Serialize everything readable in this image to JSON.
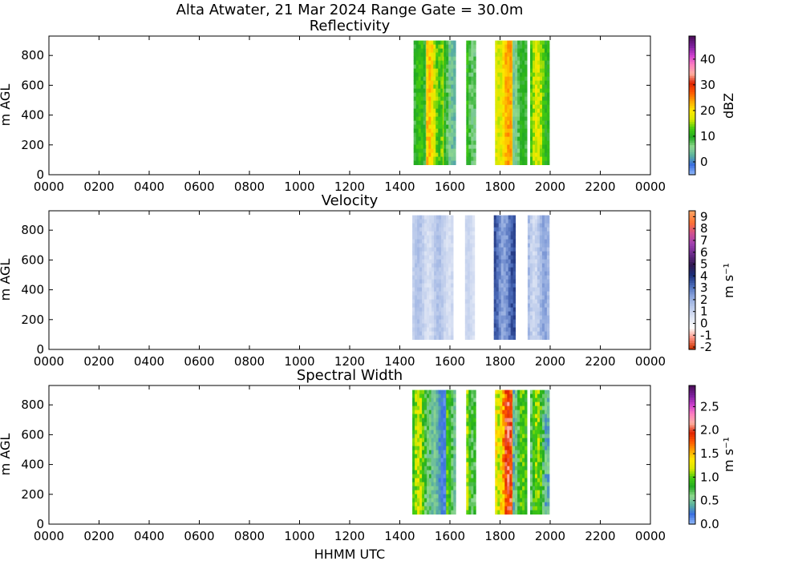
{
  "title": "Alta Atwater, 21 Mar 2024 Range Gate = 30.0m",
  "xlabel": "HHMM UTC",
  "chart_data": [
    {
      "type": "heatmap",
      "title": "Reflectivity",
      "ylabel": "m AGL",
      "xlim": [
        0,
        24
      ],
      "xticks": [
        "0000",
        "0200",
        "0400",
        "0600",
        "0800",
        "1000",
        "1200",
        "1400",
        "1600",
        "1800",
        "2000",
        "2200",
        "0000"
      ],
      "ylim": [
        0,
        930
      ],
      "yticks": [
        0,
        200,
        400,
        600,
        800
      ],
      "colorbar": {
        "label": "dBZ",
        "range": [
          -5,
          49
        ],
        "ticks": [
          "0",
          "10",
          "20",
          "30",
          "40"
        ],
        "tick_values": [
          0,
          10,
          20,
          30,
          40
        ],
        "colors": [
          "#8ab4f8",
          "#3a6fe0",
          "#5ab0a0",
          "#8fd88f",
          "#22aa22",
          "#44cc11",
          "#d8e800",
          "#ffe800",
          "#ffa500",
          "#ff5500",
          "#dd2200",
          "#ffb0a0",
          "#ff80c0",
          "#d040d0",
          "#8020a0",
          "#501060"
        ]
      },
      "swaths": [
        {
          "start": 14.55,
          "end": 15.05,
          "vmin": 5,
          "vmax": 12
        },
        {
          "start": 15.05,
          "end": 15.75,
          "vmin": 12,
          "vmax": 22
        },
        {
          "start": 15.75,
          "end": 16.2,
          "vmin": 3,
          "vmax": 10
        },
        {
          "start": 16.65,
          "end": 16.95,
          "vmin": 6,
          "vmax": 14
        },
        {
          "start": 17.8,
          "end": 18.5,
          "vmin": 17,
          "vmax": 24
        },
        {
          "start": 18.5,
          "end": 19.05,
          "vmin": 4,
          "vmax": 10
        },
        {
          "start": 19.2,
          "end": 19.9,
          "vmin": 10,
          "vmax": 18
        }
      ]
    },
    {
      "type": "heatmap",
      "title": "Velocity",
      "ylabel": "m AGL",
      "xlim": [
        0,
        24
      ],
      "xticks": [
        "0000",
        "0200",
        "0400",
        "0600",
        "0800",
        "1000",
        "1200",
        "1400",
        "1600",
        "1800",
        "2000",
        "2200",
        "0000"
      ],
      "ylim": [
        0,
        930
      ],
      "yticks": [
        0,
        200,
        400,
        600,
        800
      ],
      "colorbar": {
        "label": "m s⁻¹",
        "range": [
          -2.2,
          9.5
        ],
        "ticks": [
          "9",
          "8",
          "7",
          "6",
          "5",
          "4",
          "3",
          "2",
          "1",
          "0",
          "-1",
          "-2"
        ],
        "tick_values": [
          9,
          8,
          7,
          6,
          5,
          4,
          3,
          2,
          1,
          0,
          -1,
          -2
        ],
        "colors": [
          "#cc3300",
          "#ff9080",
          "#ffffff",
          "#dde4f4",
          "#b8c8ea",
          "#8aa4dc",
          "#4a6ab8",
          "#1a2e78",
          "#301850",
          "#6a2a8a",
          "#a040b0",
          "#d05090",
          "#ff7030",
          "#ffa060"
        ]
      },
      "swaths": [
        {
          "start": 14.5,
          "end": 16.1,
          "vmin": 0.6,
          "vmax": 1.6
        },
        {
          "start": 16.6,
          "end": 16.95,
          "vmin": 0.3,
          "vmax": 1.0
        },
        {
          "start": 17.75,
          "end": 18.6,
          "vmin": 2.2,
          "vmax": 3.6
        },
        {
          "start": 19.1,
          "end": 19.9,
          "vmin": 0.8,
          "vmax": 2.2
        }
      ]
    },
    {
      "type": "heatmap",
      "title": "Spectral Width",
      "ylabel": "m AGL",
      "xlim": [
        0,
        24
      ],
      "xticks": [
        "0000",
        "0200",
        "0400",
        "0600",
        "0800",
        "1000",
        "1200",
        "1400",
        "1600",
        "1800",
        "2000",
        "2200",
        "0000"
      ],
      "ylim": [
        0,
        930
      ],
      "yticks": [
        0,
        200,
        400,
        600,
        800
      ],
      "colorbar": {
        "label": "m s⁻¹",
        "range": [
          0,
          2.95
        ],
        "ticks": [
          "0.0",
          "0.5",
          "1.0",
          "1.5",
          "2.0",
          "2.5"
        ],
        "tick_values": [
          0,
          0.5,
          1.0,
          1.5,
          2.0,
          2.5
        ],
        "colors": [
          "#8ab4f8",
          "#3a6fe0",
          "#5ab0a0",
          "#8fd88f",
          "#22aa22",
          "#44cc11",
          "#d8e800",
          "#ffe800",
          "#ffa500",
          "#ff5500",
          "#dd2200",
          "#ffb0a0",
          "#ff80c0",
          "#d040d0",
          "#8020a0",
          "#501060"
        ]
      },
      "swaths": [
        {
          "start": 14.5,
          "end": 15.25,
          "vmin": 0.6,
          "vmax": 1.2
        },
        {
          "start": 15.25,
          "end": 15.85,
          "vmin": 0.15,
          "vmax": 0.5
        },
        {
          "start": 15.85,
          "end": 16.2,
          "vmin": 0.5,
          "vmax": 1.0
        },
        {
          "start": 16.65,
          "end": 16.95,
          "vmin": 0.7,
          "vmax": 1.4
        },
        {
          "start": 17.8,
          "end": 18.5,
          "vmin": 1.2,
          "vmax": 2.0
        },
        {
          "start": 18.5,
          "end": 19.05,
          "vmin": 0.4,
          "vmax": 1.0
        },
        {
          "start": 19.2,
          "end": 19.9,
          "vmin": 0.4,
          "vmax": 1.1
        }
      ]
    }
  ]
}
